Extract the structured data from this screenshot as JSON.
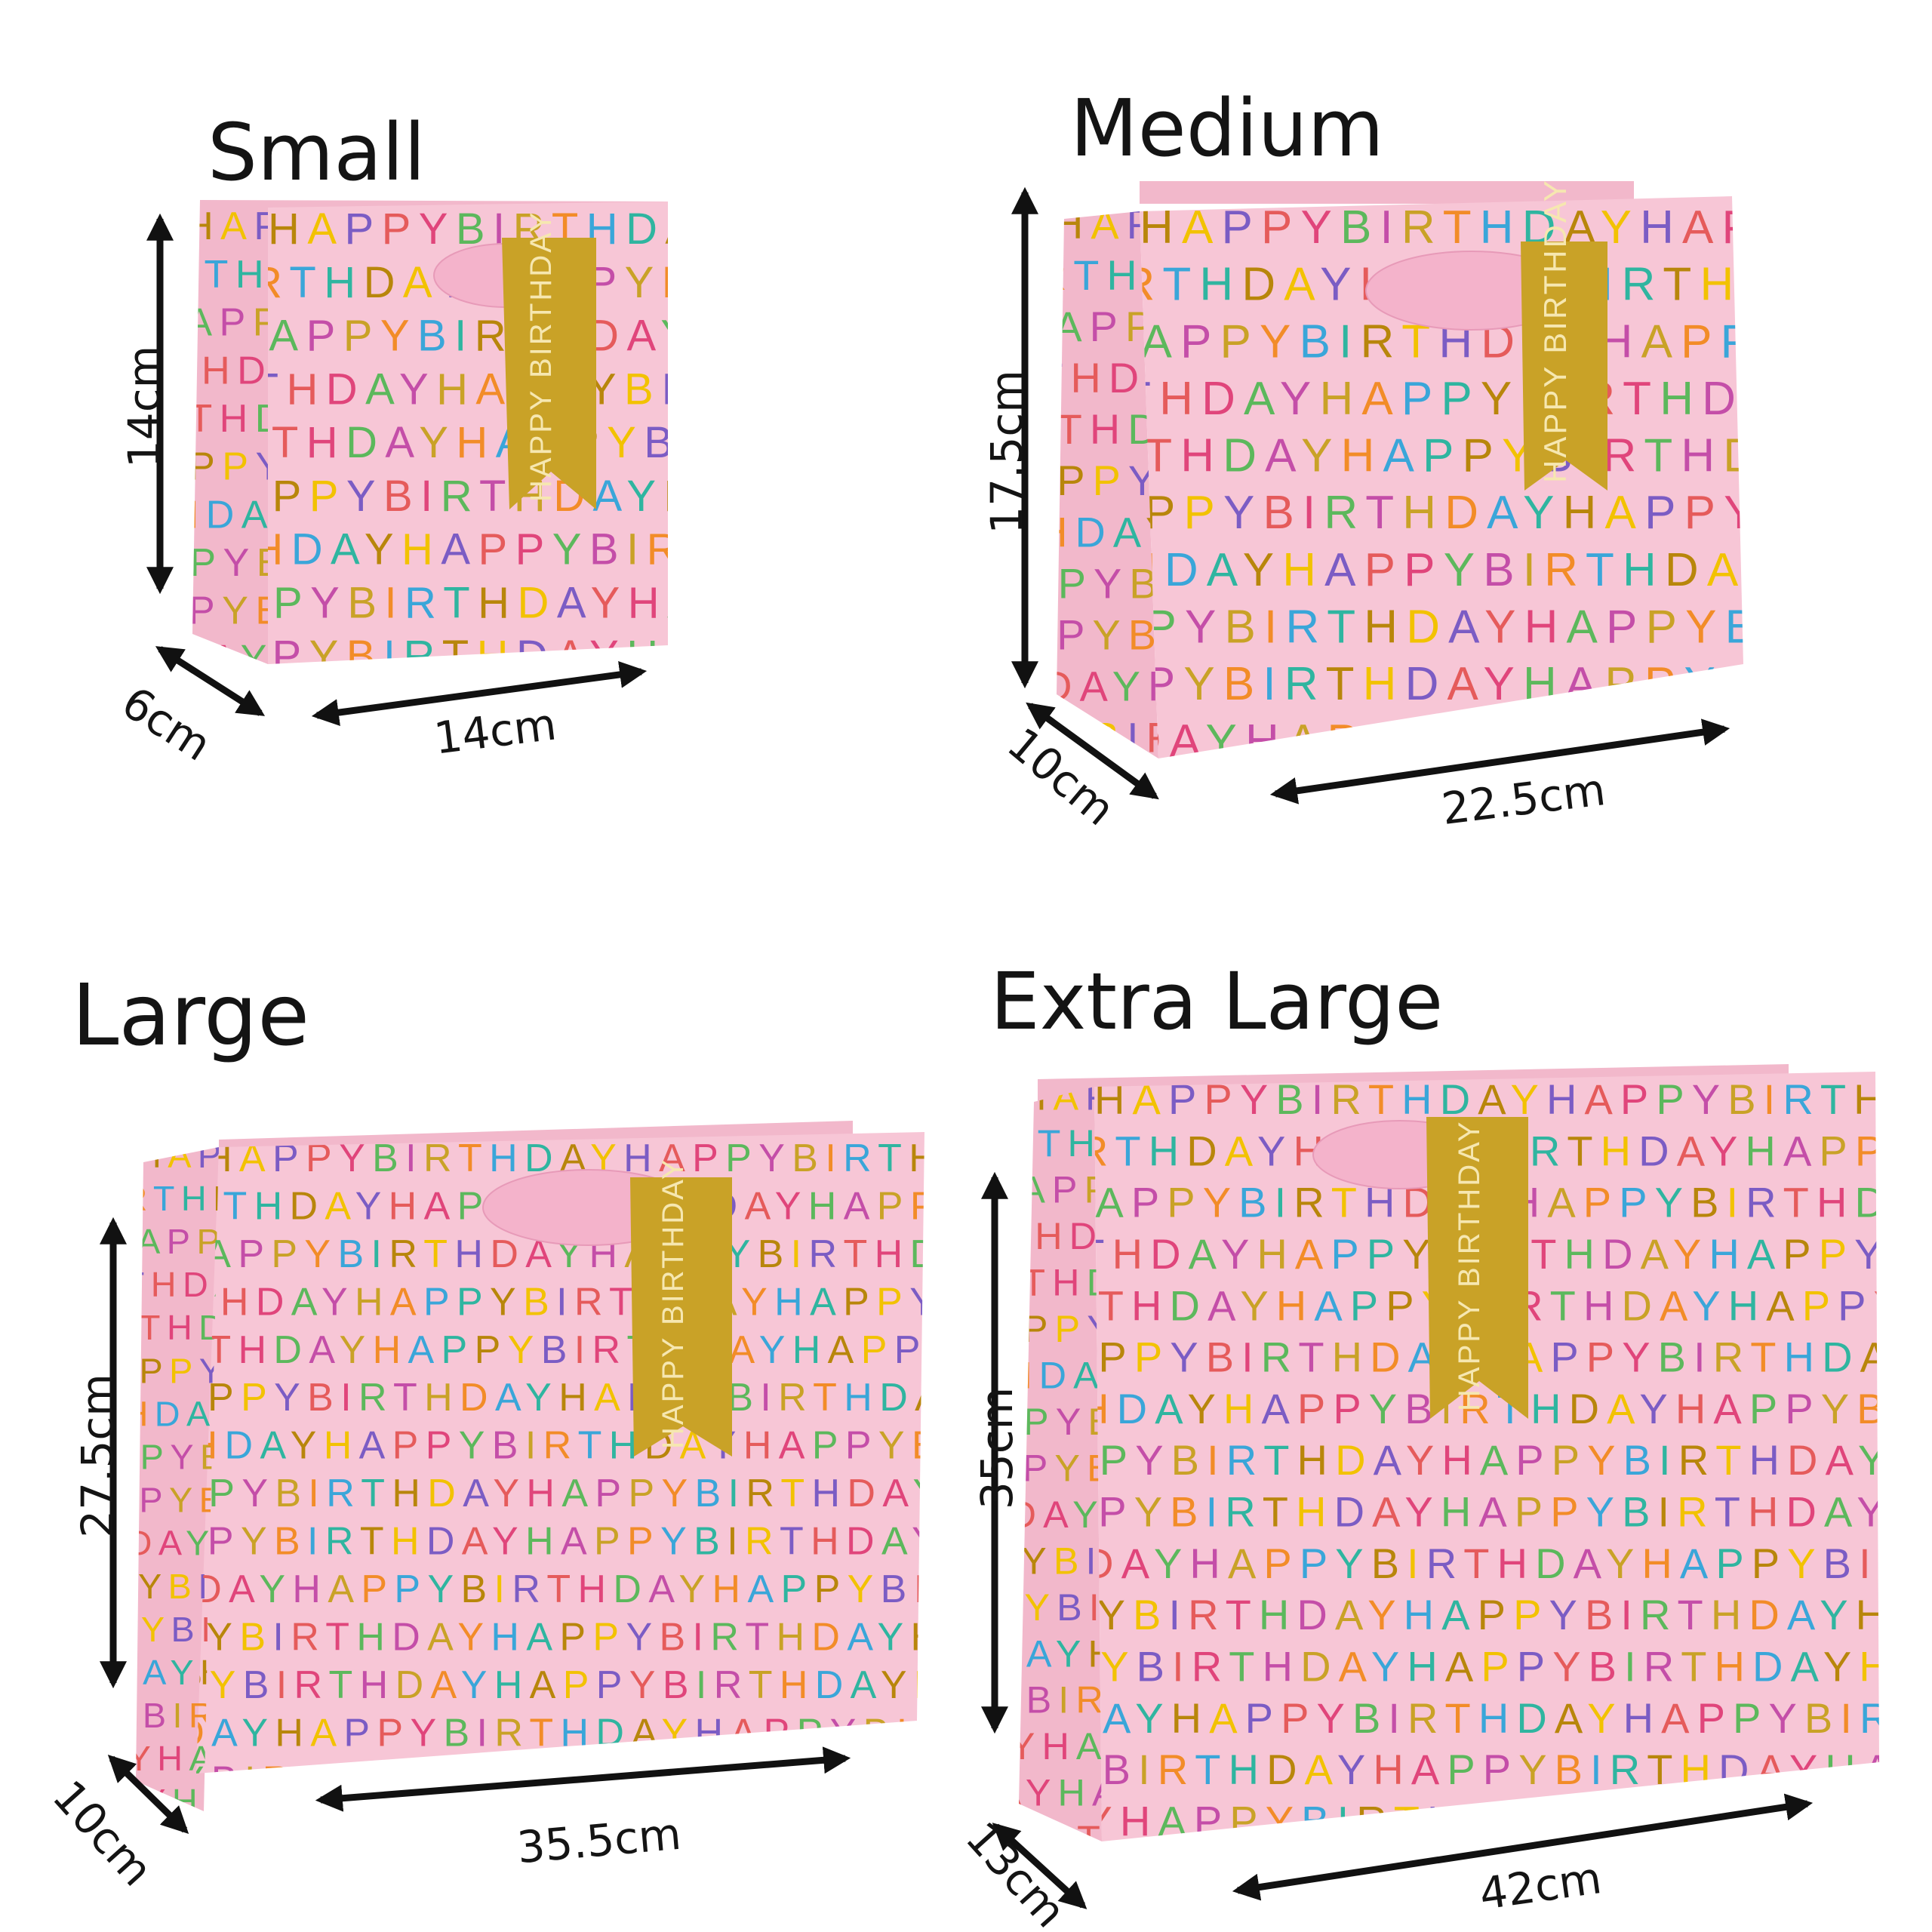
{
  "titles": {
    "small": "Small",
    "medium": "Medium",
    "large": "Large",
    "extra_large": "Extra Large"
  },
  "dimensions": {
    "small": {
      "height": "14cm",
      "depth": "6cm",
      "width": "14cm"
    },
    "medium": {
      "height": "17.5cm",
      "depth": "10cm",
      "width": "22.5cm"
    },
    "large": {
      "height": "27.5cm",
      "depth": "10cm",
      "width": "35.5cm"
    },
    "extra_large": {
      "height": "35cm",
      "depth": "13cm",
      "width": "42cm"
    }
  },
  "pattern": {
    "phrase": "HAPPY BIRTHDAY",
    "tag_text": "HAPPY BIRTHDAY",
    "colors": [
      "#b8860b",
      "#e0457b",
      "#f28c28",
      "#f2c200",
      "#5cb85c",
      "#3aa6d9",
      "#7b5cc4",
      "#c44ea8",
      "#2fb5a0",
      "#e55b5b",
      "#c9a227"
    ],
    "bag_color": "#f7c6d6",
    "bag_side_color": "#f2b8cb",
    "ribbon_color": "#f4b3cb",
    "tag_color": "#c9a227"
  }
}
